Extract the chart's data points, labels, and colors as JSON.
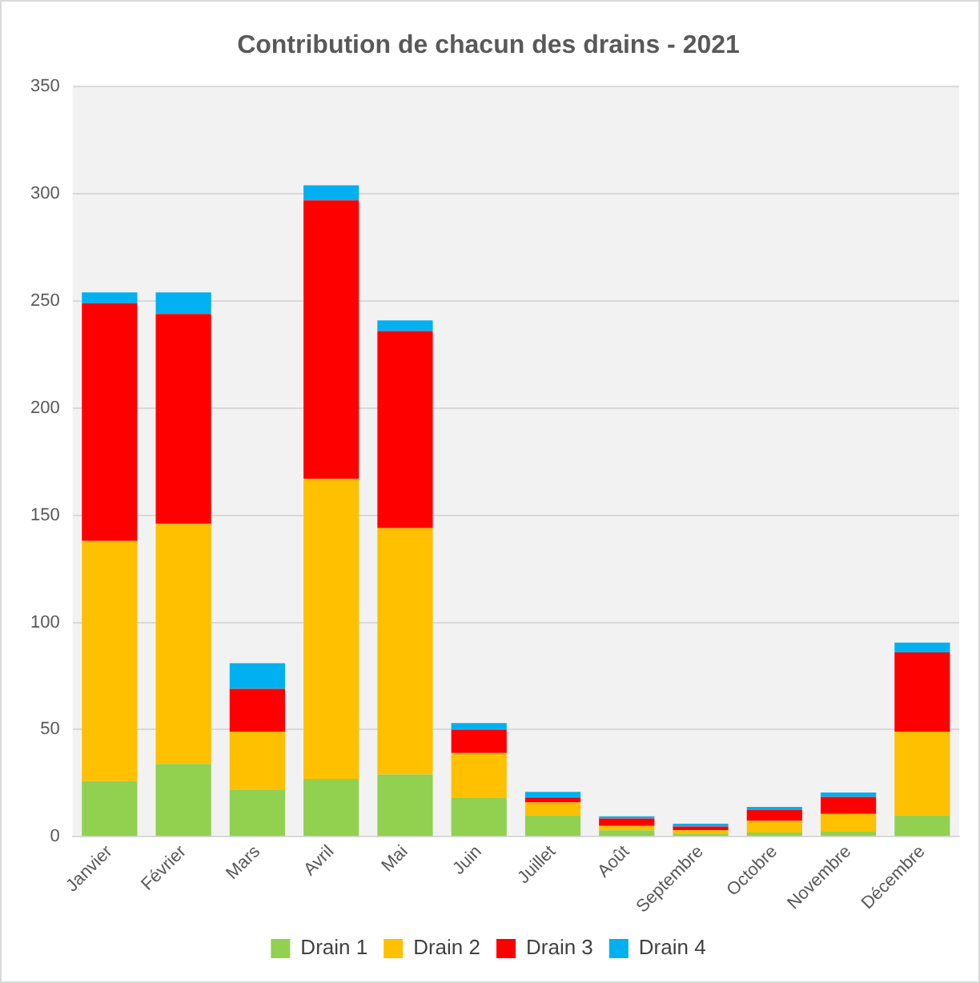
{
  "chart_data": {
    "type": "bar",
    "title": "Contribution de chacun des drains - 2021",
    "stacked": true,
    "grid": "y",
    "legend": "bottom",
    "categories": [
      "Janvier",
      "Février",
      "Mars",
      "Avril",
      "Mai",
      "Juin",
      "Juillet",
      "Août",
      "Septembre",
      "Octobre",
      "Novembre",
      "Décembre"
    ],
    "ylim": [
      0,
      350
    ],
    "yticks": [
      0,
      50,
      100,
      150,
      200,
      250,
      300,
      350
    ],
    "series": [
      {
        "name": "Drain 1",
        "color": "#92d050",
        "values": [
          26,
          34,
          22,
          27,
          29,
          18,
          10,
          3,
          1.5,
          2,
          2.6,
          10
        ]
      },
      {
        "name": "Drain 2",
        "color": "#ffc000",
        "values": [
          112,
          112,
          27,
          140,
          115,
          21,
          6,
          2,
          1.5,
          5.4,
          8,
          39
        ]
      },
      {
        "name": "Drain 3",
        "color": "#ff0000",
        "values": [
          111,
          98,
          20,
          130,
          92,
          11,
          2.3,
          3.5,
          1.8,
          5,
          8,
          37
        ]
      },
      {
        "name": "Drain 4",
        "color": "#00b0f0",
        "values": [
          5,
          10,
          12,
          7,
          5,
          3,
          2.6,
          1,
          1.3,
          1.5,
          2,
          4.6
        ]
      }
    ]
  }
}
